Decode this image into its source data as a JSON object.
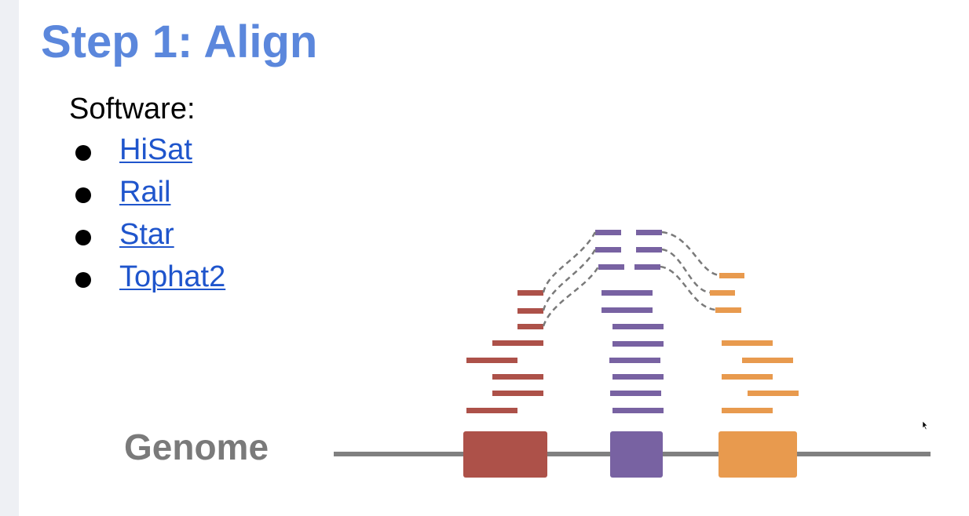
{
  "slide": {
    "title": "Step 1: Align",
    "software_heading": "Software:",
    "tools": [
      {
        "label": "HiSat"
      },
      {
        "label": "Rail"
      },
      {
        "label": "Star"
      },
      {
        "label": "Tophat2"
      }
    ]
  },
  "diagram": {
    "genome_label": "Genome",
    "colors": {
      "genome_line": "#808080",
      "exon_red": "#ad5149",
      "exon_purple": "#7862a2",
      "exon_orange": "#e89a4e",
      "splice_connector": "#7a7a7a"
    },
    "exons": [
      {
        "color": "exon_red"
      },
      {
        "color": "exon_purple"
      },
      {
        "color": "exon_orange"
      }
    ]
  }
}
